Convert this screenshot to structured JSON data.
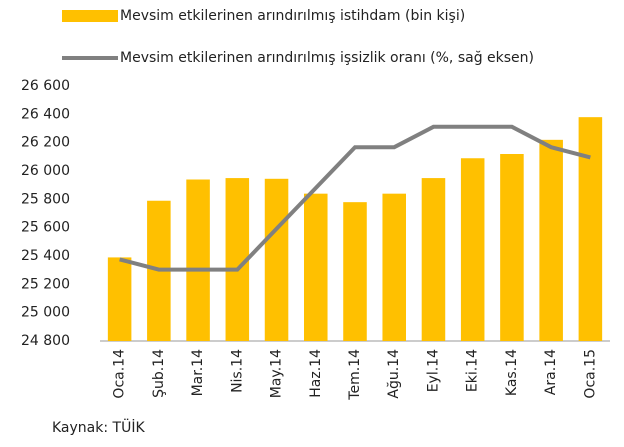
{
  "chart_data": {
    "type": "bar-line",
    "categories": [
      "Oca.14",
      "Şub.14",
      "Mar.14",
      "Nis.14",
      "May.14",
      "Haz.14",
      "Tem.14",
      "Ağu.14",
      "Eyl.14",
      "Eki.14",
      "Kas.14",
      "Ara.14",
      "Oca.15"
    ],
    "series": [
      {
        "name": "Mevsim etkilerinen arındırılmış istihdam (bin kişi)",
        "type": "bar",
        "color": "#ffc000",
        "values": [
          25390,
          25790,
          25940,
          25950,
          25945,
          25840,
          25780,
          25840,
          25950,
          26090,
          26120,
          26220,
          26380
        ]
      },
      {
        "name": "Mevsim etkilerinen arındırılmış işsizlik oranı (%, sağ eksen)",
        "type": "line",
        "color": "#808080",
        "axis": "y2",
        "values": [
          9.3,
          9.2,
          9.2,
          9.2,
          9.6,
          10.0,
          10.4,
          10.4,
          10.6,
          10.6,
          10.6,
          10.4,
          10.3
        ]
      }
    ],
    "ylim": [
      24800,
      26600
    ],
    "yticks": [
      {
        "value": 24800,
        "label": "24 800"
      },
      {
        "value": 25000,
        "label": "25 000"
      },
      {
        "value": 25200,
        "label": "25 200"
      },
      {
        "value": 25400,
        "label": "25 400"
      },
      {
        "value": 25600,
        "label": "25 600"
      },
      {
        "value": 25800,
        "label": "25 800"
      },
      {
        "value": 26000,
        "label": "26 000"
      },
      {
        "value": 26200,
        "label": "26 200"
      },
      {
        "value": 26400,
        "label": "26 400"
      },
      {
        "value": 26600,
        "label": "26 600"
      }
    ],
    "y2lim": [
      8.5,
      11.0
    ],
    "source": "Kaynak: TÜİK"
  }
}
